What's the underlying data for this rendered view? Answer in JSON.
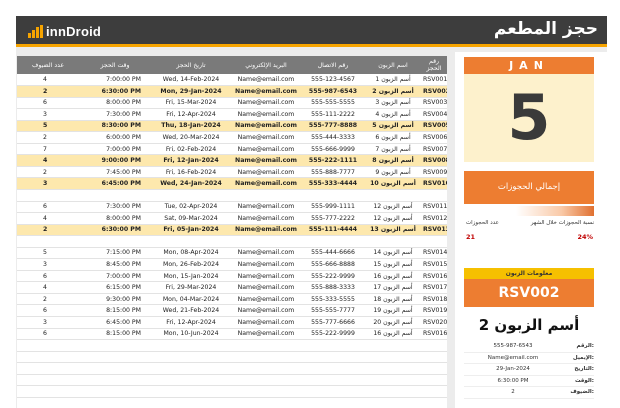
{
  "header": {
    "title": "حجز المطعم",
    "logo_text_a": "i",
    "logo_text_b": "innDroid"
  },
  "colors": {
    "accent": "#f6a400",
    "orange": "#ed7d31",
    "highlight": "#fde8ad",
    "header": "#3d3d3d"
  },
  "table": {
    "columns": [
      "عدد الضيوف",
      "وقت الحجز",
      "تاريخ الحجز",
      "البريد الإلكتروني",
      "رقم الاتصال",
      "اسم الزبون",
      "رقم الحجز"
    ],
    "rows": [
      {
        "guests": "4",
        "time": "7:00:00 PM",
        "date": "Wed, 14-Feb-2024",
        "email": "Name@email.com",
        "phone": "555-123-4567",
        "name": "أسم الزبون 1",
        "id": "RSV001",
        "hl": false
      },
      {
        "guests": "2",
        "time": "6:30:00 PM",
        "date": "Mon, 29-Jan-2024",
        "email": "Name@email.com",
        "phone": "555-987-6543",
        "name": "أسم الزبون 2",
        "id": "RSV002",
        "hl": true
      },
      {
        "guests": "6",
        "time": "8:00:00 PM",
        "date": "Fri, 15-Mar-2024",
        "email": "Name@email.com",
        "phone": "555-555-5555",
        "name": "أسم الزبون 3",
        "id": "RSV003",
        "hl": false
      },
      {
        "guests": "3",
        "time": "7:30:00 PM",
        "date": "Fri, 12-Apr-2024",
        "email": "Name@email.com",
        "phone": "555-111-2222",
        "name": "أسم الزبون 4",
        "id": "RSV004",
        "hl": false
      },
      {
        "guests": "5",
        "time": "8:30:00 PM",
        "date": "Thu, 18-Jan-2024",
        "email": "Name@email.com",
        "phone": "555-777-8888",
        "name": "أسم الزبون 5",
        "id": "RSV005",
        "hl": true
      },
      {
        "guests": "2",
        "time": "6:00:00 PM",
        "date": "Wed, 20-Mar-2024",
        "email": "Name@email.com",
        "phone": "555-444-3333",
        "name": "أسم الزبون 6",
        "id": "RSV006",
        "hl": false
      },
      {
        "guests": "7",
        "time": "7:00:00 PM",
        "date": "Fri, 02-Feb-2024",
        "email": "Name@email.com",
        "phone": "555-666-9999",
        "name": "أسم الزبون 7",
        "id": "RSV007",
        "hl": false
      },
      {
        "guests": "4",
        "time": "9:00:00 PM",
        "date": "Fri, 12-Jan-2024",
        "email": "Name@email.com",
        "phone": "555-222-1111",
        "name": "أسم الزبون 8",
        "id": "RSV008",
        "hl": true
      },
      {
        "guests": "2",
        "time": "7:45:00 PM",
        "date": "Fri, 16-Feb-2024",
        "email": "Name@email.com",
        "phone": "555-888-7777",
        "name": "أسم الزبون 9",
        "id": "RSV009",
        "hl": false
      },
      {
        "guests": "3",
        "time": "6:45:00 PM",
        "date": "Wed, 24-Jan-2024",
        "email": "Name@email.com",
        "phone": "555-333-4444",
        "name": "أسم الزبون 10",
        "id": "RSV010",
        "hl": true
      },
      {
        "guests": "",
        "time": "",
        "date": "",
        "email": "",
        "phone": "",
        "name": "",
        "id": "",
        "hl": false
      },
      {
        "guests": "6",
        "time": "7:30:00 PM",
        "date": "Tue, 02-Apr-2024",
        "email": "Name@email.com",
        "phone": "555-999-1111",
        "name": "أسم الزبون 12",
        "id": "RSV011",
        "hl": false
      },
      {
        "guests": "4",
        "time": "8:00:00 PM",
        "date": "Sat, 09-Mar-2024",
        "email": "Name@email.com",
        "phone": "555-777-2222",
        "name": "أسم الزبون 12",
        "id": "RSV012",
        "hl": false
      },
      {
        "guests": "2",
        "time": "6:30:00 PM",
        "date": "Fri, 05-Jan-2024",
        "email": "Name@email.com",
        "phone": "555-111-4444",
        "name": "أسم الزبون 13",
        "id": "RSV013",
        "hl": true
      },
      {
        "guests": "",
        "time": "",
        "date": "",
        "email": "",
        "phone": "",
        "name": "",
        "id": "",
        "hl": false
      },
      {
        "guests": "5",
        "time": "7:15:00 PM",
        "date": "Mon, 08-Apr-2024",
        "email": "Name@email.com",
        "phone": "555-444-6666",
        "name": "أسم الزبون 14",
        "id": "RSV014",
        "hl": false
      },
      {
        "guests": "3",
        "time": "8:45:00 PM",
        "date": "Mon, 26-Feb-2024",
        "email": "Name@email.com",
        "phone": "555-666-8888",
        "name": "أسم الزبون 15",
        "id": "RSV015",
        "hl": false
      },
      {
        "guests": "6",
        "time": "7:00:00 PM",
        "date": "Mon, 15-Jan-2024",
        "email": "Name@email.com",
        "phone": "555-222-9999",
        "name": "أسم الزبون 16",
        "id": "RSV016",
        "hl": false
      },
      {
        "guests": "4",
        "time": "6:15:00 PM",
        "date": "Fri, 29-Mar-2024",
        "email": "Name@email.com",
        "phone": "555-888-3333",
        "name": "أسم الزبون 17",
        "id": "RSV017",
        "hl": false
      },
      {
        "guests": "2",
        "time": "9:30:00 PM",
        "date": "Mon, 04-Mar-2024",
        "email": "Name@email.com",
        "phone": "555-333-5555",
        "name": "أسم الزبون 18",
        "id": "RSV018",
        "hl": false
      },
      {
        "guests": "6",
        "time": "8:15:00 PM",
        "date": "Wed, 21-Feb-2024",
        "email": "Name@email.com",
        "phone": "555-555-7777",
        "name": "أسم الزبون 19",
        "id": "RSV019",
        "hl": false
      },
      {
        "guests": "3",
        "time": "6:45:00 PM",
        "date": "Fri, 12-Apr-2024",
        "email": "Name@email.com",
        "phone": "555-777-6666",
        "name": "أسم الزبون 20",
        "id": "RSV020",
        "hl": false
      },
      {
        "guests": "6",
        "time": "8:15:00 PM",
        "date": "Mon, 10-Jun-2024",
        "email": "Name@email.com",
        "phone": "555-222-9999",
        "name": "أسم الزبون 16",
        "id": "RSV016",
        "hl": false
      }
    ]
  },
  "calendar": {
    "month": "JAN",
    "day": "5"
  },
  "totals": {
    "title": "إجمالي الحجوزات",
    "label_pct": "نسبة الحجوزات خلال الشهر",
    "label_count": "عدد الحجوزات",
    "pct": "24%",
    "pct_fraction": 0.24,
    "count": "21"
  },
  "customer": {
    "section_title": "معلومات الزبون",
    "id": "RSV002",
    "name": "أسم الزبون 2",
    "fields": [
      {
        "label": "الرقم:",
        "value": "555-987-6543"
      },
      {
        "label": "الإيميل:",
        "value": "Name@email.com"
      },
      {
        "label": "التاريخ:",
        "value": "29-Jan-2024"
      },
      {
        "label": "الوقت:",
        "value": "6:30:00 PM"
      },
      {
        "label": "الضيوف:",
        "value": "2"
      }
    ]
  }
}
